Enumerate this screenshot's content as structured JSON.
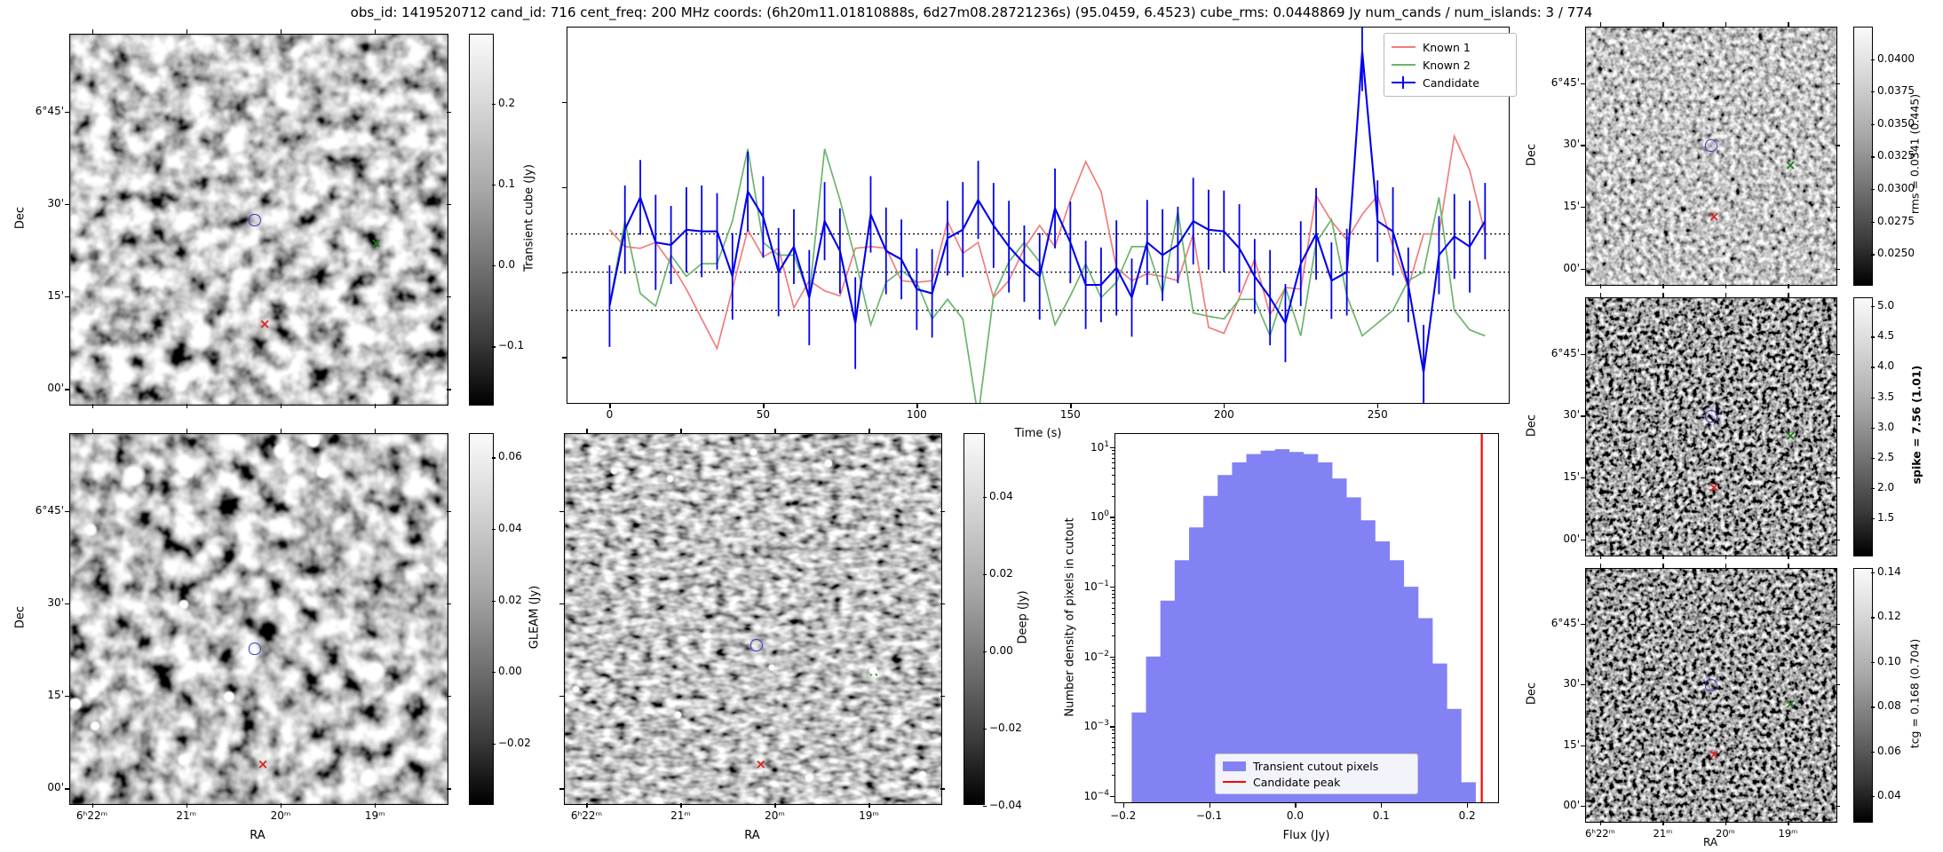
{
  "title": "obs_id: 1419520712 cand_id: 716 cent_freq: 200 MHz coords: (6h20m11.01810888s, 6d27m08.28721236s) (95.0459, 6.4523) cube_rms: 0.0448869 Jy num_cands / num_islands: 3 / 774",
  "colors": {
    "known1": "#f27d7d",
    "known2": "#6cb46c",
    "candidate": "#0000ee",
    "hist_fill": "#8282f5",
    "peak_line": "#ff0000",
    "dotted_line": "#000000",
    "marker_green": "#1f7a1f",
    "marker_red": "#e02020",
    "marker_blue": "#3a3ad0"
  },
  "axes": {
    "dec_label": "Dec",
    "ra_label": "RA",
    "dec_ticks": [
      "6°45'",
      "30'",
      "15'",
      "00'"
    ],
    "ra_ticks": [
      "6ʰ22ᵐ",
      "21ᵐ",
      "20ᵐ",
      "19ᵐ"
    ]
  },
  "colorbars": {
    "transient": {
      "label": "Transient cube (Jy)",
      "tick_labels": [
        "0.2",
        "0.1",
        "0.0",
        "−0.1"
      ],
      "tick_values": [
        0.2,
        0.1,
        0.0,
        -0.1
      ],
      "vmin": -0.171,
      "vmax": 0.287,
      "bold": false
    },
    "gleam": {
      "label": "GLEAM (Jy)",
      "tick_labels": [
        "0.06",
        "0.04",
        "0.02",
        "0.00",
        "−0.02"
      ],
      "tick_values": [
        0.06,
        0.04,
        0.02,
        0.0,
        -0.02
      ],
      "vmin": -0.0367,
      "vmax": 0.0668,
      "bold": false
    },
    "deep": {
      "label": "Deep (Jy)",
      "tick_labels": [
        "0.04",
        "0.02",
        "0.00",
        "−0.02",
        "−0.04"
      ],
      "tick_values": [
        0.04,
        0.02,
        0.0,
        -0.02,
        -0.04
      ],
      "vmin": -0.0393,
      "vmax": 0.0565,
      "bold": false
    },
    "rms": {
      "label": "rms = 0.0341 (0.445)",
      "tick_labels": [
        "0.0400",
        "0.0375",
        "0.0350",
        "0.0325",
        "0.0300",
        "0.0275",
        "0.0250"
      ],
      "tick_values": [
        0.04,
        0.0375,
        0.035,
        0.0325,
        0.03,
        0.0275,
        0.025
      ],
      "vmin": 0.0227,
      "vmax": 0.0425,
      "bold": false
    },
    "spike": {
      "label": "spike = 7.56 (1.01)",
      "tick_labels": [
        "5.0",
        "4.5",
        "4.0",
        "3.5",
        "3.0",
        "2.5",
        "2.0",
        "1.5"
      ],
      "tick_values": [
        5.0,
        4.5,
        4.0,
        3.5,
        3.0,
        2.5,
        2.0,
        1.5
      ],
      "vmin": 0.9,
      "vmax": 5.15,
      "bold": true
    },
    "tcg": {
      "label": "tcg = 0.168 (0.704)",
      "tick_labels": [
        "0.14",
        "0.12",
        "0.10",
        "0.08",
        "0.06",
        "0.04"
      ],
      "tick_values": [
        0.14,
        0.12,
        0.1,
        0.08,
        0.06,
        0.04
      ],
      "vmin": 0.029,
      "vmax": 0.142,
      "bold": false
    }
  },
  "markers": {
    "transient": [
      {
        "type": "contour",
        "x": 0.49,
        "y": 0.5
      },
      {
        "type": "cross",
        "color": "green",
        "x": 0.81,
        "y": 0.56
      },
      {
        "type": "cross",
        "color": "red",
        "x": 0.515,
        "y": 0.78
      }
    ],
    "gleam": [
      {
        "type": "contour",
        "x": 0.49,
        "y": 0.58
      },
      {
        "type": "cross",
        "color": "green",
        "x": 0.81,
        "y": 0.64
      },
      {
        "type": "cross",
        "color": "red",
        "x": 0.51,
        "y": 0.89
      }
    ],
    "deep": [
      {
        "type": "contour",
        "x": 0.51,
        "y": 0.57
      },
      {
        "type": "cross",
        "color": "green",
        "x": 0.82,
        "y": 0.64
      },
      {
        "type": "cross",
        "color": "red",
        "x": 0.52,
        "y": 0.89
      }
    ],
    "rms": [
      {
        "type": "contour",
        "x": 0.5,
        "y": 0.46
      },
      {
        "type": "cross",
        "color": "green",
        "x": 0.815,
        "y": 0.53
      },
      {
        "type": "cross",
        "color": "red",
        "x": 0.51,
        "y": 0.73
      }
    ],
    "spike": [
      {
        "type": "contour",
        "x": 0.5,
        "y": 0.46
      },
      {
        "type": "cross",
        "color": "green",
        "x": 0.815,
        "y": 0.53
      },
      {
        "type": "cross",
        "color": "red",
        "x": 0.51,
        "y": 0.73
      }
    ],
    "tcg": [
      {
        "type": "contour",
        "x": 0.5,
        "y": 0.46
      },
      {
        "type": "cross",
        "color": "green",
        "x": 0.815,
        "y": 0.53
      },
      {
        "type": "cross",
        "color": "red",
        "x": 0.51,
        "y": 0.73
      }
    ]
  },
  "chart_data": [
    {
      "type": "line",
      "name": "lightcurve",
      "xlabel": "Time (s)",
      "xlim": [
        -14,
        293
      ],
      "ylim": [
        -0.155,
        0.289
      ],
      "x_ticks": [
        0,
        50,
        100,
        150,
        200,
        250
      ],
      "y_ticks_unlabeled": [
        0.2,
        0.1,
        0.0,
        -0.1
      ],
      "hlines_dotted": [
        0.0449,
        0.0,
        -0.0449
      ],
      "t_start": 0,
      "t_step": 5,
      "legend_position": "upper right",
      "series": [
        {
          "name": "Known 1",
          "style": "line",
          "values": [
            0.05,
            0.03,
            0.028,
            0.035,
            0.01,
            -0.02,
            -0.055,
            -0.09,
            -0.02,
            0.05,
            0.018,
            0.028,
            -0.042,
            -0.01,
            -0.022,
            -0.028,
            0.028,
            0.03,
            0.028,
            -0.01,
            -0.012,
            -0.01,
            0.06,
            0.022,
            0.035,
            -0.03,
            -0.01,
            0.028,
            0.055,
            0.03,
            0.085,
            0.13,
            0.095,
            0.005,
            -0.01,
            -0.002,
            -0.005,
            -0.01,
            0.045,
            -0.065,
            -0.072,
            -0.03,
            0.015,
            -0.05,
            -0.018,
            -0.02,
            0.09,
            0.06,
            0.038,
            0.068,
            0.09,
            0.03,
            -0.018,
            0.045,
            0.045,
            0.16,
            0.12,
            0.045
          ]
        },
        {
          "name": "Known 2",
          "style": "line",
          "values": [
            -0.038,
            0.06,
            -0.025,
            -0.04,
            0.02,
            -0.005,
            0.01,
            0.01,
            0.06,
            0.145,
            0.035,
            0.02,
            0.02,
            -0.028,
            0.145,
            0.085,
            0.015,
            -0.062,
            -0.012,
            0.002,
            -0.012,
            -0.055,
            -0.032,
            -0.055,
            -0.17,
            -0.028,
            0.012,
            0.035,
            0.012,
            -0.062,
            -0.028,
            0.01,
            -0.03,
            -0.012,
            0.03,
            0.03,
            -0.025,
            0.072,
            -0.048,
            -0.052,
            -0.055,
            -0.032,
            -0.032,
            -0.075,
            -0.018,
            -0.075,
            0.035,
            0.062,
            -0.028,
            -0.075,
            -0.06,
            -0.045,
            -0.01,
            0.0,
            0.088,
            -0.045,
            -0.068,
            -0.075
          ]
        },
        {
          "name": "Candidate",
          "style": "errorbar",
          "values": [
            -0.04,
            0.05,
            0.088,
            0.035,
            0.032,
            0.05,
            0.048,
            0.048,
            -0.005,
            0.095,
            0.065,
            0.0,
            0.03,
            -0.03,
            0.06,
            0.025,
            -0.06,
            0.068,
            0.025,
            0.015,
            -0.02,
            -0.025,
            0.04,
            0.05,
            0.085,
            0.055,
            0.03,
            0.01,
            -0.005,
            0.075,
            0.035,
            -0.015,
            -0.015,
            0.005,
            -0.03,
            0.035,
            0.02,
            0.032,
            0.06,
            0.05,
            0.048,
            0.028,
            -0.005,
            -0.03,
            -0.06,
            0.01,
            0.045,
            -0.01,
            0.0,
            0.26,
            0.06,
            0.048,
            -0.015,
            -0.118,
            0.02,
            0.042,
            0.03,
            0.06
          ],
          "yerr": [
            0.048,
            0.052,
            0.044,
            0.056,
            0.046,
            0.05,
            0.054,
            0.045,
            0.051,
            0.047,
            0.048,
            0.052,
            0.044,
            0.056,
            0.046,
            0.05,
            0.054,
            0.045,
            0.051,
            0.047,
            0.048,
            0.052,
            0.044,
            0.056,
            0.046,
            0.05,
            0.054,
            0.045,
            0.051,
            0.047,
            0.048,
            0.052,
            0.044,
            0.056,
            0.046,
            0.05,
            0.054,
            0.045,
            0.051,
            0.047,
            0.048,
            0.052,
            0.044,
            0.056,
            0.046,
            0.05,
            0.054,
            0.045,
            0.051,
            0.047,
            0.048,
            0.052,
            0.044,
            0.056,
            0.046,
            0.05,
            0.054,
            0.045
          ]
        }
      ]
    },
    {
      "type": "bar",
      "name": "flux-histogram",
      "xlabel": "Flux (Jy)",
      "ylabel": "Number density of pixels in cutout",
      "yscale": "log",
      "xlim": [
        -0.21,
        0.237
      ],
      "ylim_log10": [
        -4.1,
        1.2
      ],
      "x_ticks": [
        -0.2,
        -0.1,
        0.0,
        0.1,
        0.2
      ],
      "x_tick_labels": [
        "−0.2",
        "−0.1",
        "0.0",
        "0.1",
        "0.2"
      ],
      "y_tick_exponents": [
        1,
        0,
        -1,
        -2,
        -3,
        -4
      ],
      "bin_start": -0.19,
      "bin_width": 0.016667,
      "log10_density": [
        -2.8,
        -2.0,
        -1.2,
        -0.62,
        -0.15,
        0.3,
        0.6,
        0.78,
        0.9,
        0.95,
        0.97,
        0.93,
        0.9,
        0.78,
        0.55,
        0.28,
        -0.05,
        -0.35,
        -0.62,
        -1.0,
        -1.45,
        -2.1,
        -2.75,
        -3.8
      ],
      "candidate_peak_jy": 0.217,
      "legend": [
        "Transient cutout pixels",
        "Candidate peak"
      ],
      "legend_position": "lower center"
    }
  ]
}
